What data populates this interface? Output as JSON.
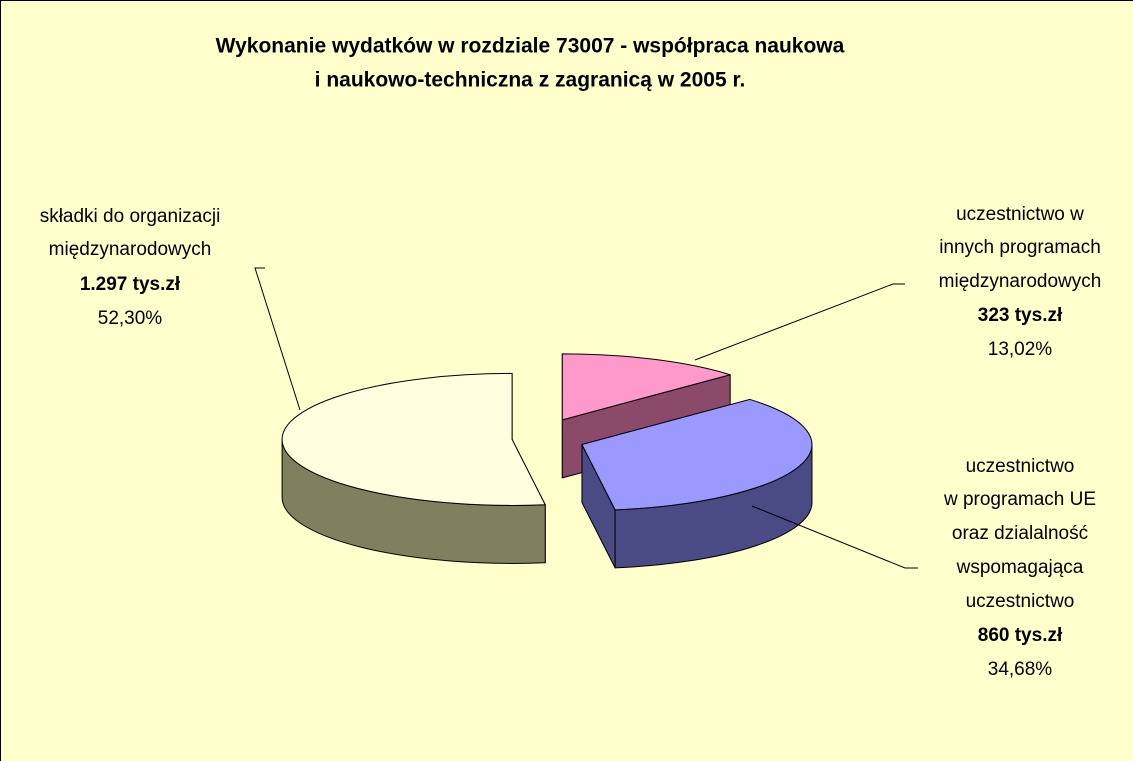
{
  "chart_data": {
    "type": "pie3d",
    "title": [
      "Wykonanie wydatków w rozdziale 73007 - współpraca naukowa",
      "i naukowo-techniczna z zagranicą w 2005 r."
    ],
    "categories": [
      [
        "uczestnictwo w",
        "innych programach",
        "międzynarodowych"
      ],
      [
        "uczestnictwo",
        "w programach UE",
        "oraz dzialalność",
        "wspomagająca",
        "uczestnictwo"
      ],
      [
        "składki do organizacji",
        "międzynarodowych"
      ]
    ],
    "amount_labels": [
      "323 tys.zł",
      "860 tys.zł",
      "1.297 tys.zł"
    ],
    "values": [
      13.02,
      34.68,
      52.3
    ],
    "value_labels": [
      "13,02%",
      "34,68%",
      "52,30%"
    ],
    "colors": [
      "#FF99CC",
      "#9999FF",
      "#FFFFE0"
    ],
    "side_colors": [
      "#8C4A6A",
      "#4A4A85",
      "#80805E"
    ]
  }
}
